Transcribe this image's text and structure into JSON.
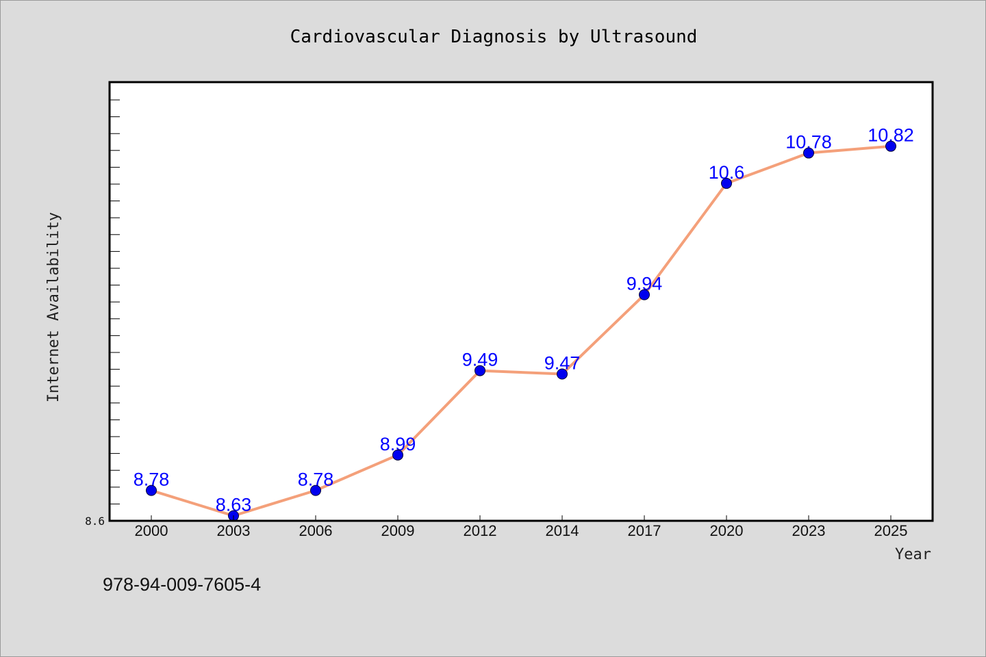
{
  "chart_data": {
    "type": "line",
    "title": "Cardiovascular Diagnosis by Ultrasound",
    "xlabel": "Year",
    "ylabel": "Internet Availability",
    "categories": [
      "2000",
      "2003",
      "2006",
      "2009",
      "2012",
      "2014",
      "2017",
      "2020",
      "2023",
      "2025"
    ],
    "series": [
      {
        "values": [
          8.78,
          8.63,
          8.78,
          8.99,
          9.49,
          9.47,
          9.94,
          10.6,
          10.78,
          10.82
        ],
        "labels": [
          "8.78",
          "8.63",
          "8.78",
          "8.99",
          "9.49",
          "9.47",
          "9.94",
          "10.6",
          "10.78",
          "10.82"
        ],
        "line_color": "#f4a07a",
        "marker_color": "#0000ee"
      }
    ],
    "ylim": [
      8.6,
      11.2
    ],
    "ytick_labels": [
      "8.6"
    ],
    "grid": false,
    "background": "#dcdcdc",
    "plot_background": "#ffffff",
    "label_color": "#0000ff"
  },
  "footer": {
    "isbn": "978-94-009-7605-4"
  }
}
